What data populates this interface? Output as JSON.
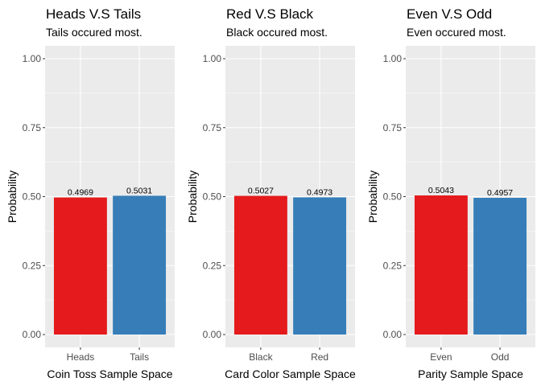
{
  "chart_data": [
    {
      "type": "bar",
      "title": "Heads V.S Tails",
      "subtitle": "Tails occured most.",
      "xlabel": "Coin Toss Sample Space",
      "ylabel": "Probability",
      "categories": [
        "Heads",
        "Tails"
      ],
      "values": [
        0.4969,
        0.5031
      ],
      "value_labels": [
        "0.4969",
        "0.5031"
      ],
      "colors": [
        "#E41A1C",
        "#377EB8"
      ],
      "ylim": [
        0,
        1
      ],
      "yticks": [
        "0.00",
        "0.25",
        "0.50",
        "0.75",
        "1.00"
      ],
      "grid": true,
      "legend": "none"
    },
    {
      "type": "bar",
      "title": "Red V.S Black",
      "subtitle": "Black occured most.",
      "xlabel": "Card Color Sample Space",
      "ylabel": "Probability",
      "categories": [
        "Black",
        "Red"
      ],
      "values": [
        0.5027,
        0.4973
      ],
      "value_labels": [
        "0.5027",
        "0.4973"
      ],
      "colors": [
        "#E41A1C",
        "#377EB8"
      ],
      "ylim": [
        0,
        1
      ],
      "yticks": [
        "0.00",
        "0.25",
        "0.50",
        "0.75",
        "1.00"
      ],
      "grid": true,
      "legend": "none"
    },
    {
      "type": "bar",
      "title": "Even V.S Odd",
      "subtitle": "Even occured most.",
      "xlabel": "Parity Sample Space",
      "ylabel": "Probability",
      "categories": [
        "Even",
        "Odd"
      ],
      "values": [
        0.5043,
        0.4957
      ],
      "value_labels": [
        "0.5043",
        "0.4957"
      ],
      "colors": [
        "#E41A1C",
        "#377EB8"
      ],
      "ylim": [
        0,
        1
      ],
      "yticks": [
        "0.00",
        "0.25",
        "0.50",
        "0.75",
        "1.00"
      ],
      "grid": true,
      "legend": "none"
    }
  ],
  "colors": {
    "panel_background": "#EBEBEB",
    "major_grid": "#FFFFFF",
    "tick_text": "#4D4D4D",
    "tick_mark": "#333333"
  }
}
